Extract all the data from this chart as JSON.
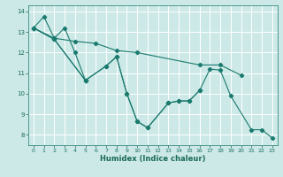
{
  "title": "",
  "xlabel": "Humidex (Indice chaleur)",
  "ylabel": "",
  "background_color": "#cce9e7",
  "grid_color": "#ffffff",
  "line_color": "#1a7a6e",
  "xlim": [
    -0.5,
    23.5
  ],
  "ylim": [
    7.5,
    14.3
  ],
  "xticks": [
    0,
    1,
    2,
    3,
    4,
    5,
    6,
    7,
    8,
    9,
    10,
    11,
    12,
    13,
    14,
    15,
    16,
    17,
    18,
    19,
    20,
    21,
    22,
    23
  ],
  "yticks": [
    8,
    9,
    10,
    11,
    12,
    13,
    14
  ],
  "series": [
    {
      "x": [
        0,
        1,
        2,
        3,
        4,
        5
      ],
      "y": [
        13.2,
        13.75,
        12.7,
        13.2,
        12.0,
        10.65
      ]
    },
    {
      "x": [
        0,
        2,
        4,
        6,
        8,
        10,
        16,
        18,
        20
      ],
      "y": [
        13.2,
        12.7,
        12.55,
        12.45,
        12.1,
        12.0,
        11.4,
        11.4,
        10.9
      ]
    },
    {
      "x": [
        0,
        2,
        5,
        7,
        8,
        9,
        10,
        11,
        13,
        14,
        15,
        16,
        17,
        18,
        19,
        21,
        22,
        23
      ],
      "y": [
        13.2,
        12.65,
        10.65,
        11.35,
        11.8,
        10.0,
        8.65,
        8.35,
        9.55,
        9.65,
        9.65,
        10.15,
        11.2,
        11.15,
        9.9,
        8.25,
        8.25,
        7.85
      ]
    },
    {
      "x": [
        0,
        2,
        5,
        7,
        8,
        9,
        10,
        11,
        13,
        14,
        15,
        16
      ],
      "y": [
        13.2,
        12.65,
        10.65,
        11.35,
        11.8,
        10.0,
        8.65,
        8.35,
        9.55,
        9.65,
        9.65,
        10.15
      ]
    }
  ]
}
